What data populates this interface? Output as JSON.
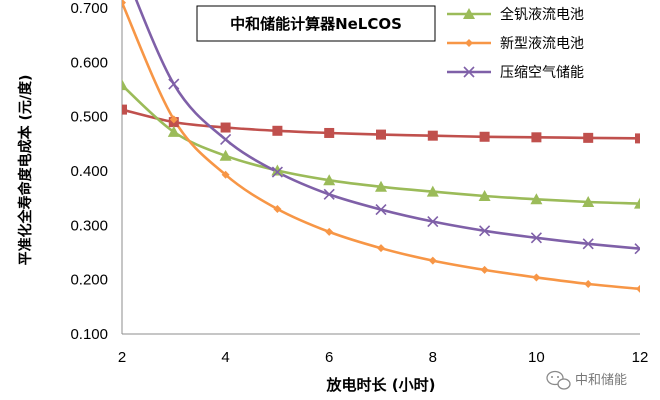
{
  "chart_data": {
    "type": "line",
    "title": "中和储能计算器NeLCOS",
    "xlabel": "放电时长 (小时)",
    "ylabel": "平准化全寿命度电成本 (元/度)",
    "x": [
      2,
      3,
      4,
      5,
      6,
      7,
      8,
      9,
      10,
      11,
      12
    ],
    "xticks": [
      "2",
      "4",
      "6",
      "8",
      "10",
      "12"
    ],
    "yticks": [
      "0.100",
      "0.200",
      "0.300",
      "0.400",
      "0.500",
      "0.600",
      "0.700"
    ],
    "xlim": [
      2,
      12
    ],
    "ylim": [
      0.1,
      0.72
    ],
    "grid": false,
    "legend_position": "top-right",
    "series": [
      {
        "name": "全钒液流电池",
        "color": "#9bbb59",
        "marker": "triangle",
        "values": [
          0.558,
          0.472,
          0.428,
          0.401,
          0.383,
          0.371,
          0.362,
          0.354,
          0.348,
          0.343,
          0.34
        ]
      },
      {
        "name": "新型液流电池",
        "color": "#f79646",
        "marker": "diamond",
        "values": [
          0.71,
          0.495,
          0.393,
          0.33,
          0.288,
          0.258,
          0.235,
          0.218,
          0.204,
          0.192,
          0.183
        ]
      },
      {
        "name": "压缩空气储能",
        "color": "#7f60a8",
        "marker": "x",
        "values": [
          0.78,
          0.56,
          0.458,
          0.398,
          0.357,
          0.329,
          0.307,
          0.29,
          0.277,
          0.266,
          0.257
        ]
      },
      {
        "name": "",
        "color": "#c0504d",
        "marker": "square",
        "values": [
          0.513,
          0.49,
          0.48,
          0.474,
          0.47,
          0.467,
          0.465,
          0.463,
          0.462,
          0.461,
          0.46
        ]
      }
    ]
  },
  "watermark": {
    "icon": "wechat-icon",
    "text": "中和储能"
  }
}
